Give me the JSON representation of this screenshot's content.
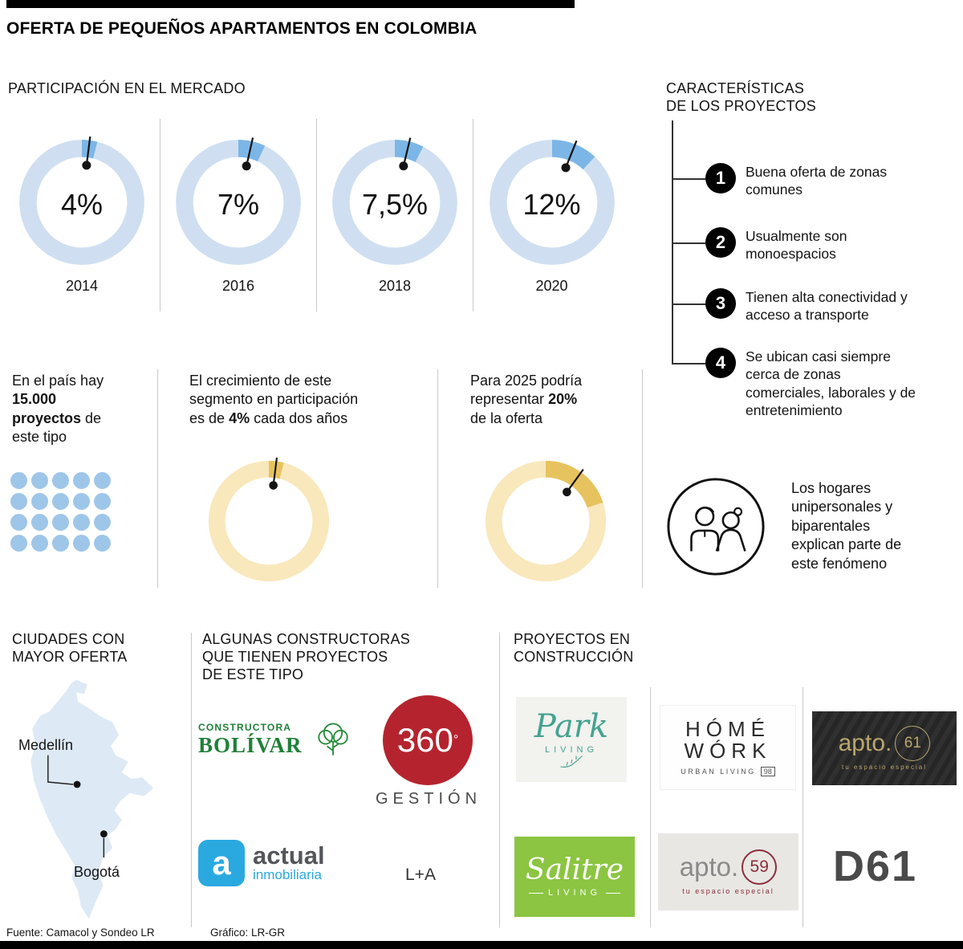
{
  "title": "OFERTA DE PEQUEÑOS APARTAMENTOS EN COLOMBIA",
  "chart_data": [
    {
      "id": "market_share",
      "type": "pie",
      "variant": "donut",
      "title": "PARTICIPACIÓN EN EL MERCADO",
      "categories": [
        "2014",
        "2016",
        "2018",
        "2020"
      ],
      "values": [
        4,
        7,
        7.5,
        12
      ],
      "value_labels": [
        "4%",
        "7%",
        "7,5%",
        "12%"
      ],
      "unit": "%",
      "ring_color": "#cfdff1",
      "segment_color": "#7cb6e7"
    },
    {
      "id": "growth_per_two_years",
      "type": "pie",
      "variant": "donut",
      "highlight_pct": 4,
      "label": "4% cada dos años",
      "ring_color": "#f9e8bc",
      "segment_color": "#e7c35f"
    },
    {
      "id": "forecast_2025",
      "type": "pie",
      "variant": "donut",
      "highlight_pct": 20,
      "label": "20% de la oferta",
      "ring_color": "#f9e8bc",
      "segment_color": "#e7c35f"
    }
  ],
  "sections": {
    "market": {
      "heading": "PARTICIPACIÓN EN EL MERCADO"
    },
    "characteristics": {
      "heading1": "CARACTERÍSTICAS",
      "heading2": "DE LOS PROYECTOS",
      "items": [
        {
          "num": "1",
          "text": "Buena oferta de zonas comunes"
        },
        {
          "num": "2",
          "text": "Usualmente son monoespacios"
        },
        {
          "num": "3",
          "text": "Tienen alta conectividad y acceso a transporte"
        },
        {
          "num": "4",
          "text": "Se ubican casi siempre cerca de zonas comerciales, laborales y de entretenimiento"
        }
      ]
    },
    "supply": {
      "pre": "En el país hay",
      "bold": "15.000 proyectos",
      "post": "de este tipo",
      "dots": {
        "count": 20,
        "columns": 5,
        "color": "#9ec6e9"
      }
    },
    "growth": {
      "pre": "El crecimiento de este segmento en participación es de",
      "bold": "4%",
      "post": "cada dos años"
    },
    "forecast": {
      "pre": "Para 2025 podría representar",
      "bold": "20%",
      "post": "de la oferta"
    },
    "households": {
      "text": "Los hogares unipersonales y biparentales explican parte de este fenómeno"
    },
    "cities": {
      "heading1": "CIUDADES CON",
      "heading2": "MAYOR OFERTA",
      "labels": [
        "Medellín",
        "Bogotá"
      ]
    },
    "builders": {
      "heading1": "ALGUNAS CONSTRUCTORAS",
      "heading2": "QUE TIENEN PROYECTOS",
      "heading3": "DE ESTE TIPO",
      "bolivar": {
        "top": "CONSTRUCTORA",
        "name": "BOLÍVAR",
        "color": "#1e8038"
      },
      "g360": {
        "number": "360",
        "degree": "°",
        "word": "GESTIÓN",
        "color": "#b5242e"
      },
      "actual": {
        "initial": "a",
        "name": "actual",
        "sub": "inmobiliaria",
        "color": "#2aa9e1"
      },
      "la": {
        "name": "L+A"
      }
    },
    "projects": {
      "heading1": "PROYECTOS EN",
      "heading2": "CONSTRUCCIÓN",
      "park": {
        "name": "Park",
        "sub": "LIVING",
        "color": "#43a38f"
      },
      "homework": {
        "line1": "HÓMÉ",
        "line2": "WÓRK",
        "sub": "URBAN LIVING",
        "badge": "98"
      },
      "apto61": {
        "name": "apto.",
        "number": "61",
        "sub": "tu espacio especial",
        "color": "#b9a76d"
      },
      "salitre": {
        "name": "Salitre",
        "sub": "LIVING",
        "color": "#8bc541"
      },
      "apto59": {
        "name": "apto.",
        "number": "59",
        "sub": "tu espacio especial",
        "color": "#8c2d3c"
      },
      "d61": {
        "name": "D61"
      }
    },
    "footer": {
      "source": "Fuente: Camacol y Sondeo LR",
      "credit": "Gráfico: LR-GR"
    }
  }
}
